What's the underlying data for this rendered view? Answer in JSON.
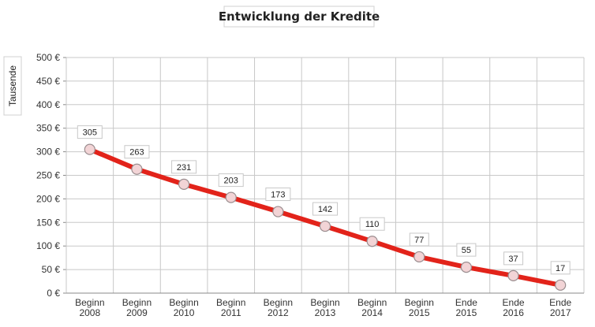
{
  "chart_data": {
    "type": "line",
    "title": "Entwicklung der Kredite",
    "ylabel": "Tausende",
    "xlabel": "",
    "categories": [
      [
        "Beginn",
        "2008"
      ],
      [
        "Beginn",
        "2009"
      ],
      [
        "Beginn",
        "2010"
      ],
      [
        "Beginn",
        "2011"
      ],
      [
        "Beginn",
        "2012"
      ],
      [
        "Beginn",
        "2013"
      ],
      [
        "Beginn",
        "2014"
      ],
      [
        "Beginn",
        "2015"
      ],
      [
        "Ende",
        "2015"
      ],
      [
        "Ende",
        "2016"
      ],
      [
        "Ende",
        "2017"
      ]
    ],
    "values": [
      305,
      263,
      231,
      203,
      173,
      142,
      110,
      77,
      55,
      37,
      17
    ],
    "ylim": [
      0,
      500
    ],
    "yticks": [
      "0 €",
      "50 €",
      "100 €",
      "150 €",
      "200 €",
      "250 €",
      "300 €",
      "350 €",
      "400 €",
      "450 €",
      "500 €"
    ],
    "grid": true,
    "legend": "none",
    "colors": {
      "line": "#e2231a",
      "marker_fill": "#f2d4d6",
      "marker_stroke": "#9a8d8f"
    }
  }
}
